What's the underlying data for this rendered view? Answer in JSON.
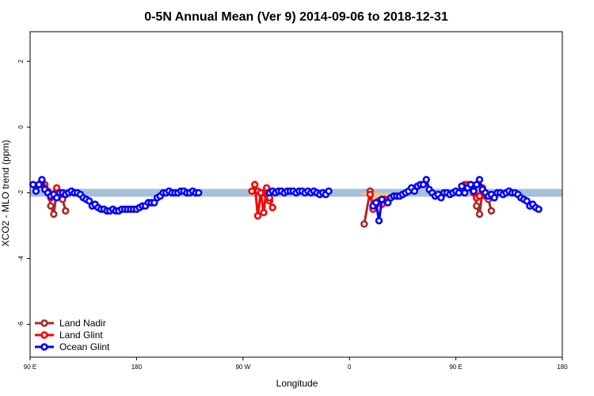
{
  "chart_data": {
    "type": "line",
    "title": "0-5N Annual Mean (Ver 9)   2014-09-06 to 2018-12-31",
    "xlabel": "Longitude",
    "ylabel": "XCO2 - MLO trend (ppm)",
    "xlim": [
      90,
      540
    ],
    "ylim": [
      -7,
      2.9
    ],
    "x_ticks": [
      {
        "value": 90,
        "label": "90 E"
      },
      {
        "value": 180,
        "label": "180"
      },
      {
        "value": 270,
        "label": "90 W"
      },
      {
        "value": 360,
        "label": "0"
      },
      {
        "value": 450,
        "label": "90 E"
      },
      {
        "value": 540,
        "label": "180"
      }
    ],
    "y_ticks": [
      {
        "value": 2,
        "label": "2"
      },
      {
        "value": 0,
        "label": "0"
      },
      {
        "value": -2,
        "label": "-2"
      },
      {
        "value": -4,
        "label": "-4"
      },
      {
        "value": -6,
        "label": "-6"
      }
    ],
    "reference_band": {
      "y_low": -2.12,
      "y_high": -1.88,
      "color": "#a8bfdc"
    },
    "fill_color": "#f5c96a",
    "legend_position": "bottom-left",
    "series": [
      {
        "name": "Land Nadir",
        "color": "#a52a2a",
        "segments": [
          [
            [
              102.5,
              -1.75
            ],
            [
              105,
              -1.95
            ],
            [
              107.5,
              -2.4
            ],
            [
              110,
              -2.65
            ],
            [
              112.5,
              -1.95
            ],
            [
              115,
              -2.1
            ],
            [
              117.5,
              -2.2
            ],
            [
              120,
              -2.55
            ]
          ],
          [
            [
              282.5,
              -1.95
            ],
            [
              285,
              -2.0
            ],
            [
              287.5,
              -2.0
            ],
            [
              290,
              -2.05
            ],
            [
              292.5,
              -2.25
            ]
          ],
          [
            [
              372.5,
              -2.95
            ],
            [
              377.5,
              -1.95
            ],
            [
              380,
              -2.45
            ],
            [
              382.5,
              -2.35
            ],
            [
              385,
              -2.25
            ]
          ],
          [
            [
              462.5,
              -1.75
            ],
            [
              465,
              -1.85
            ],
            [
              467.5,
              -2.4
            ],
            [
              470,
              -2.65
            ],
            [
              472.5,
              -1.95
            ],
            [
              475,
              -2.1
            ],
            [
              477.5,
              -2.2
            ],
            [
              480,
              -2.55
            ]
          ]
        ]
      },
      {
        "name": "Land Glint",
        "color": "#ff0000",
        "segments": [
          [
            [
              97.5,
              -1.75
            ],
            [
              100,
              -1.75
            ],
            [
              102.5,
              -1.85
            ],
            [
              105,
              -2.0
            ],
            [
              107.5,
              -2.15
            ],
            [
              110,
              -2.1
            ],
            [
              112.5,
              -1.85
            ],
            [
              115,
              -2.05
            ]
          ],
          [
            [
              277.5,
              -1.95
            ],
            [
              280,
              -1.75
            ],
            [
              282.5,
              -2.7
            ],
            [
              285,
              -2.0
            ],
            [
              287.5,
              -2.6
            ],
            [
              290,
              -1.85
            ],
            [
              292.5,
              -2.15
            ],
            [
              295,
              -2.45
            ]
          ],
          [
            [
              377.5,
              -2.05
            ],
            [
              380,
              -2.5
            ],
            [
              382.5,
              -2.35
            ],
            [
              385,
              -2.25
            ],
            [
              387.5,
              -2.35
            ],
            [
              390,
              -2.2
            ],
            [
              392.5,
              -2.25
            ]
          ],
          [
            [
              457.5,
              -1.75
            ],
            [
              460,
              -1.75
            ],
            [
              462.5,
              -1.85
            ],
            [
              465,
              -2.0
            ],
            [
              467.5,
              -2.15
            ],
            [
              470,
              -2.1
            ],
            [
              472.5,
              -1.85
            ],
            [
              475,
              -2.05
            ]
          ]
        ]
      },
      {
        "name": "Ocean Glint",
        "color": "#0000ff",
        "segments": [
          [
            [
              92.5,
              -1.75
            ],
            [
              95,
              -1.95
            ],
            [
              97.5,
              -1.75
            ],
            [
              100,
              -1.6
            ],
            [
              102.5,
              -1.9
            ],
            [
              105,
              -2.0
            ],
            [
              107.5,
              -2.1
            ],
            [
              110,
              -2.05
            ],
            [
              112.5,
              -2.15
            ],
            [
              115,
              -2.0
            ],
            [
              117.5,
              -2.0
            ],
            [
              120,
              -2.05
            ],
            [
              122.5,
              -2.0
            ],
            [
              125,
              -1.95
            ],
            [
              127.5,
              -2.0
            ],
            [
              130,
              -2.0
            ],
            [
              132.5,
              -2.05
            ],
            [
              135,
              -2.15
            ],
            [
              137.5,
              -2.2
            ],
            [
              140,
              -2.25
            ],
            [
              142.5,
              -2.4
            ],
            [
              145,
              -2.35
            ],
            [
              147.5,
              -2.45
            ],
            [
              150,
              -2.5
            ],
            [
              152.5,
              -2.5
            ],
            [
              155,
              -2.55
            ],
            [
              157.5,
              -2.55
            ],
            [
              160,
              -2.5
            ],
            [
              162.5,
              -2.55
            ],
            [
              165,
              -2.55
            ],
            [
              167.5,
              -2.5
            ],
            [
              170,
              -2.5
            ],
            [
              172.5,
              -2.5
            ],
            [
              175,
              -2.5
            ],
            [
              177.5,
              -2.5
            ],
            [
              180,
              -2.5
            ],
            [
              182.5,
              -2.45
            ],
            [
              185,
              -2.4
            ],
            [
              187.5,
              -2.4
            ],
            [
              190,
              -2.3
            ],
            [
              192.5,
              -2.3
            ],
            [
              195,
              -2.3
            ],
            [
              197.5,
              -2.15
            ],
            [
              200,
              -2.1
            ],
            [
              202.5,
              -2.0
            ],
            [
              205,
              -2.0
            ],
            [
              207.5,
              -1.95
            ],
            [
              210,
              -2.0
            ],
            [
              212.5,
              -2.0
            ],
            [
              215,
              -2.0
            ],
            [
              217.5,
              -1.95
            ],
            [
              220,
              -1.95
            ],
            [
              222.5,
              -2.0
            ],
            [
              225,
              -2.0
            ],
            [
              227.5,
              -1.95
            ],
            [
              230,
              -2.0
            ],
            [
              232.5,
              -2.0
            ]
          ],
          [
            [
              292.5,
              -2.0
            ],
            [
              295,
              -1.95
            ],
            [
              297.5,
              -2.0
            ],
            [
              300,
              -1.95
            ],
            [
              302.5,
              -1.95
            ],
            [
              305,
              -2.0
            ],
            [
              307.5,
              -1.95
            ],
            [
              310,
              -1.95
            ],
            [
              312.5,
              -1.95
            ],
            [
              315,
              -2.0
            ],
            [
              317.5,
              -1.95
            ],
            [
              320,
              -1.95
            ],
            [
              322.5,
              -2.0
            ],
            [
              325,
              -1.95
            ],
            [
              327.5,
              -2.0
            ],
            [
              330,
              -1.95
            ],
            [
              332.5,
              -2.0
            ],
            [
              335,
              -2.05
            ],
            [
              337.5,
              -2.0
            ],
            [
              340,
              -2.05
            ],
            [
              342.5,
              -1.95
            ]
          ],
          [
            [
              380,
              -2.4
            ],
            [
              382.5,
              -2.3
            ],
            [
              385,
              -2.85
            ],
            [
              387.5,
              -2.2
            ]
          ],
          [
            [
              392.5,
              -2.3
            ],
            [
              395,
              -2.15
            ],
            [
              397.5,
              -2.1
            ],
            [
              400,
              -2.1
            ],
            [
              402.5,
              -2.1
            ],
            [
              405,
              -2.05
            ],
            [
              407.5,
              -2.0
            ],
            [
              410,
              -1.95
            ],
            [
              412.5,
              -1.85
            ],
            [
              415,
              -1.95
            ],
            [
              417.5,
              -1.8
            ],
            [
              420,
              -1.75
            ],
            [
              422.5,
              -1.75
            ],
            [
              425,
              -1.6
            ],
            [
              427.5,
              -1.9
            ],
            [
              430,
              -2.0
            ],
            [
              432.5,
              -2.1
            ],
            [
              435,
              -2.05
            ],
            [
              437.5,
              -2.15
            ],
            [
              440,
              -2.0
            ],
            [
              442.5,
              -2.0
            ],
            [
              445,
              -2.05
            ],
            [
              447.5,
              -2.0
            ],
            [
              450,
              -1.95
            ],
            [
              452.5,
              -2.0
            ],
            [
              455,
              -1.8
            ],
            [
              457.5,
              -2.0
            ],
            [
              460,
              -1.85
            ],
            [
              462.5,
              -1.75
            ],
            [
              465,
              -1.95
            ],
            [
              467.5,
              -1.75
            ],
            [
              470,
              -1.6
            ],
            [
              472.5,
              -1.9
            ],
            [
              475,
              -2.0
            ],
            [
              477.5,
              -2.1
            ],
            [
              480,
              -2.05
            ],
            [
              482.5,
              -2.15
            ],
            [
              485,
              -2.0
            ],
            [
              487.5,
              -2.0
            ],
            [
              490,
              -2.05
            ],
            [
              492.5,
              -2.0
            ],
            [
              495,
              -1.95
            ],
            [
              497.5,
              -2.0
            ],
            [
              500,
              -2.0
            ],
            [
              502.5,
              -2.05
            ],
            [
              505,
              -2.15
            ],
            [
              507.5,
              -2.2
            ],
            [
              510,
              -2.25
            ],
            [
              512.5,
              -2.4
            ],
            [
              515,
              -2.35
            ],
            [
              517.5,
              -2.45
            ],
            [
              520,
              -2.5
            ]
          ]
        ]
      }
    ]
  }
}
